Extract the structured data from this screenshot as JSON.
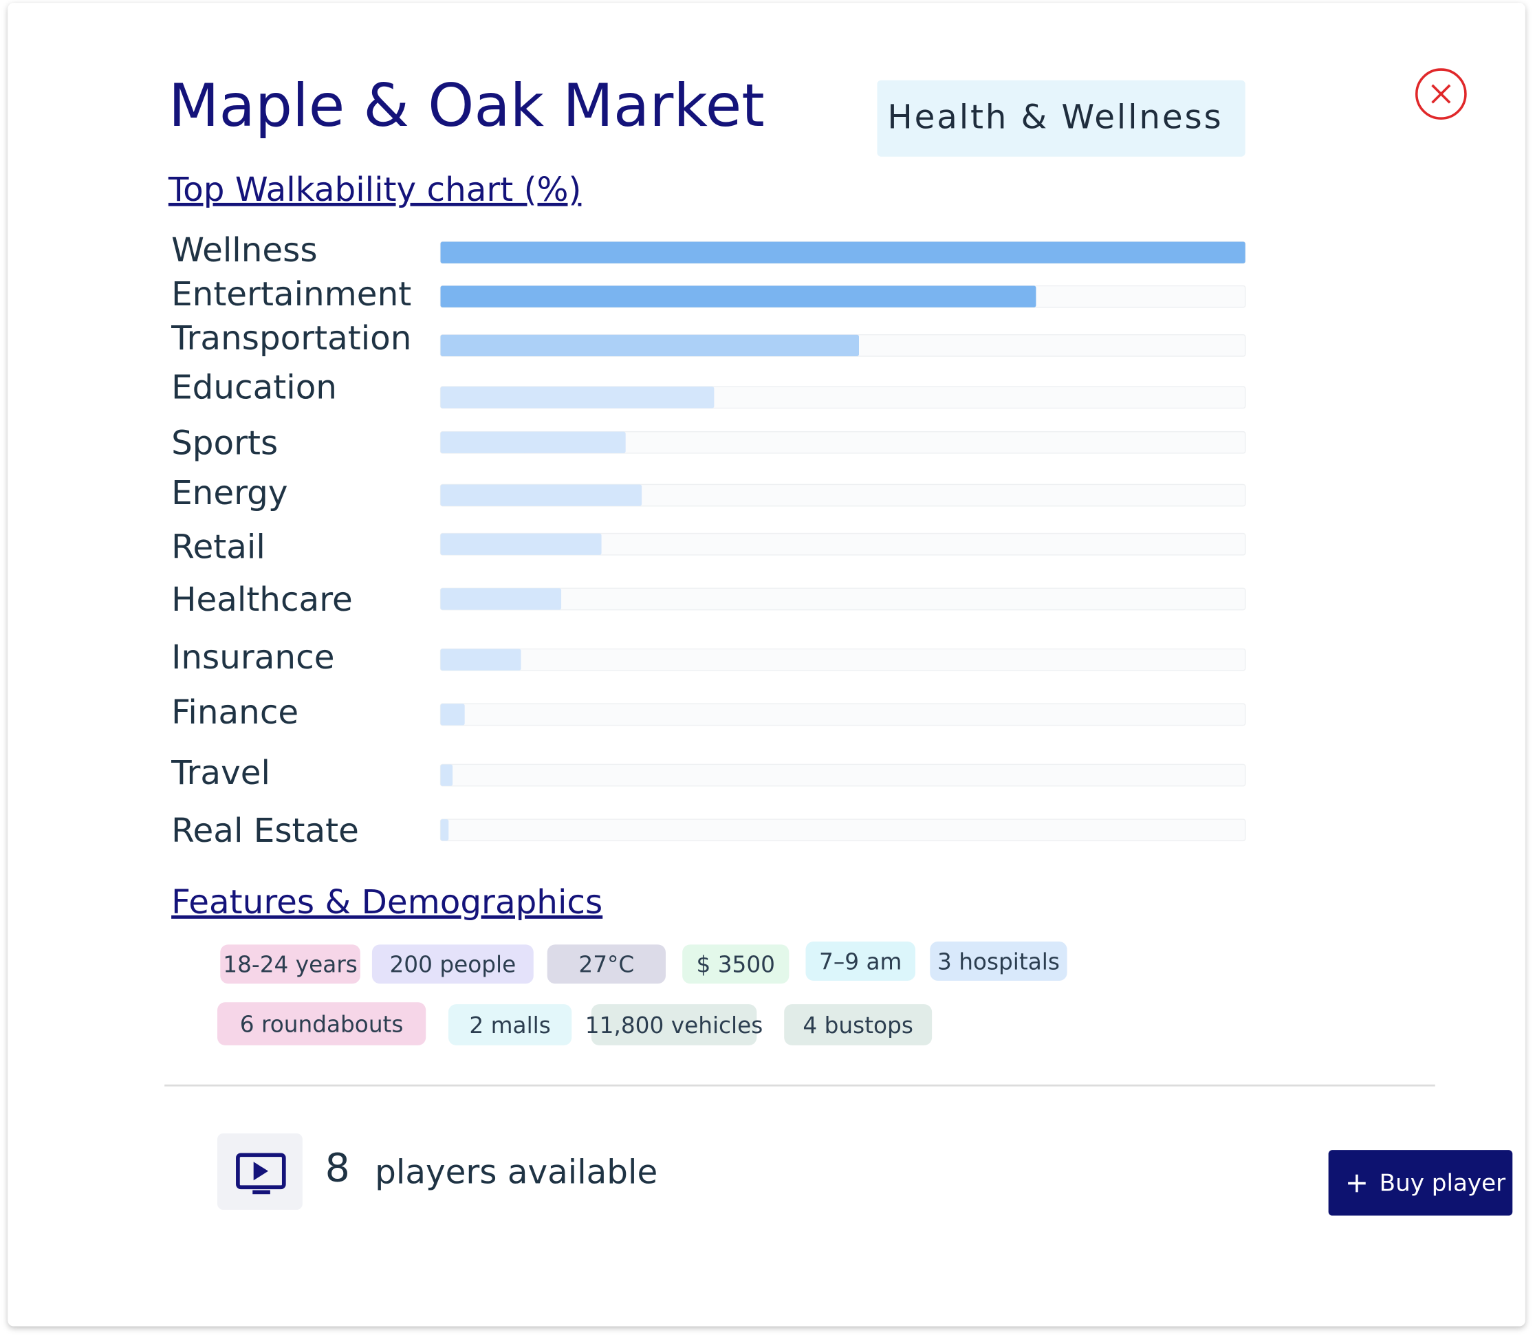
{
  "header": {
    "title": "Maple & Oak Market",
    "tag": "Health & Wellness"
  },
  "chart_data": {
    "type": "bar",
    "orientation": "horizontal",
    "title": "Top Walkability chart (%)",
    "categories": [
      "Wellness",
      "Entertainment",
      "Transportation",
      "Education",
      "Sports",
      "Energy",
      "Retail",
      "Healthcare",
      "Insurance",
      "Finance",
      "Travel",
      "Real Estate"
    ],
    "values": [
      100,
      74,
      52,
      34,
      23,
      25,
      20,
      15,
      10,
      3,
      1.5,
      1
    ],
    "colors": [
      "#7ab4f0",
      "#7ab4f0",
      "#acd0f7",
      "#d4e6fb",
      "#d4e6fb",
      "#d4e6fb",
      "#d4e6fb",
      "#d4e6fb",
      "#d4e6fb",
      "#d4e6fb",
      "#d4e6fb",
      "#d4e6fb"
    ],
    "xlim": [
      0,
      100
    ]
  },
  "features": {
    "title": "Features & Demographics",
    "chips": [
      "18-24 years",
      "200 people",
      "27°C",
      "$ 3500",
      "7–9 am",
      "3 hospitals",
      "6 roundabouts",
      "2 malls",
      "11,800 vehicles",
      "4 bustops"
    ]
  },
  "footer": {
    "players": 8,
    "players_text": "players available",
    "button": "Buy player"
  }
}
